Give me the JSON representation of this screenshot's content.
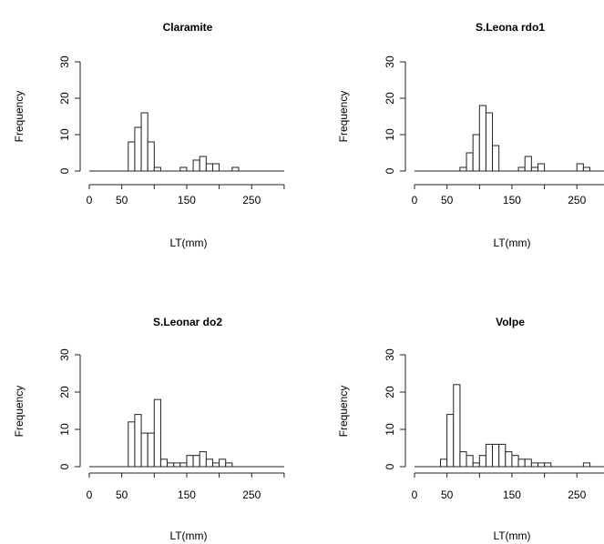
{
  "chart_data": [
    {
      "type": "bar",
      "title": "Claramite",
      "xlabel": "LT(mm)",
      "ylabel": "Frequency",
      "xlim": [
        0,
        300
      ],
      "ylim": [
        0,
        30
      ],
      "x_ticks": [
        "0",
        "50",
        "150",
        "250"
      ],
      "y_ticks": [
        "0",
        "10",
        "20",
        "30"
      ],
      "bin_width": 10,
      "bin_starts": [
        60,
        70,
        80,
        90,
        100,
        140,
        160,
        170,
        180,
        190,
        220
      ],
      "values": [
        8,
        12,
        16,
        8,
        1,
        1,
        3,
        4,
        2,
        2,
        1
      ]
    },
    {
      "type": "bar",
      "title": "S.Leona rdo1",
      "xlabel": "LT(mm)",
      "ylabel": "Frequency",
      "xlim": [
        0,
        300
      ],
      "ylim": [
        0,
        30
      ],
      "x_ticks": [
        "0",
        "50",
        "150",
        "250"
      ],
      "y_ticks": [
        "0",
        "10",
        "20",
        "30"
      ],
      "bin_width": 10,
      "bin_starts": [
        70,
        80,
        90,
        100,
        110,
        120,
        160,
        170,
        180,
        190,
        250,
        260
      ],
      "values": [
        1,
        5,
        10,
        18,
        16,
        7,
        1,
        4,
        1,
        2,
        2,
        1
      ]
    },
    {
      "type": "bar",
      "title": "S.Leonar do2",
      "xlabel": "LT(mm)",
      "ylabel": "Frequency",
      "xlim": [
        0,
        300
      ],
      "ylim": [
        0,
        30
      ],
      "x_ticks": [
        "0",
        "50",
        "150",
        "250"
      ],
      "y_ticks": [
        "0",
        "10",
        "20",
        "30"
      ],
      "bin_width": 10,
      "bin_starts": [
        60,
        70,
        80,
        90,
        100,
        110,
        120,
        130,
        140,
        150,
        160,
        170,
        180,
        190,
        200,
        210
      ],
      "values": [
        12,
        14,
        9,
        9,
        18,
        2,
        1,
        1,
        1,
        3,
        3,
        4,
        2,
        1,
        2,
        1
      ]
    },
    {
      "type": "bar",
      "title": "Volpe",
      "xlabel": "LT(mm)",
      "ylabel": "Frequency",
      "xlim": [
        0,
        300
      ],
      "ylim": [
        0,
        30
      ],
      "x_ticks": [
        "0",
        "50",
        "150",
        "250"
      ],
      "y_ticks": [
        "0",
        "10",
        "20",
        "30"
      ],
      "bin_width": 10,
      "bin_starts": [
        40,
        50,
        60,
        70,
        80,
        90,
        100,
        110,
        120,
        130,
        140,
        150,
        160,
        170,
        180,
        190,
        200,
        260
      ],
      "values": [
        2,
        14,
        22,
        4,
        3,
        1,
        3,
        6,
        6,
        6,
        4,
        3,
        2,
        2,
        1,
        1,
        1,
        1
      ]
    }
  ]
}
